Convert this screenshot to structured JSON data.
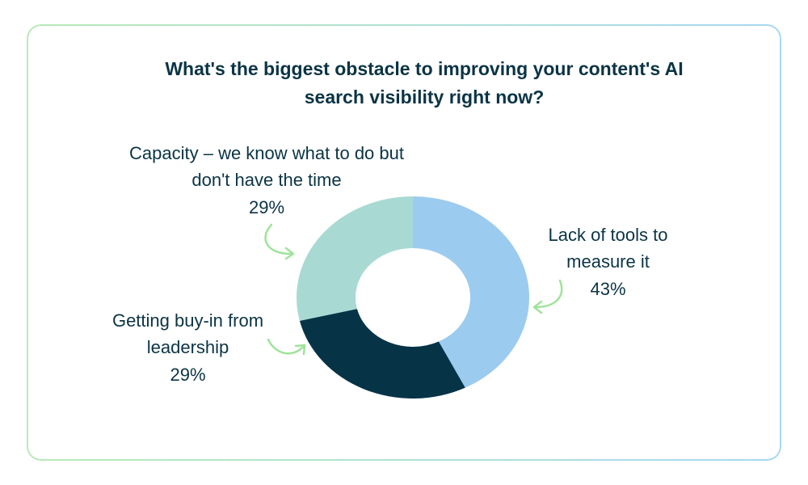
{
  "chart_data": {
    "type": "pie",
    "title": "What's the biggest obstacle to improving your content's AI search visibility right now?",
    "categories": [
      "Lack of tools to measure it",
      "Getting buy-in from leadership",
      "Capacity – we know what to do but don't have the time"
    ],
    "values": [
      43,
      29,
      29
    ],
    "value_labels": [
      "43%",
      "29%",
      "29%"
    ],
    "colors": [
      "#9ccbf0",
      "#073347",
      "#a9d9d3"
    ]
  }
}
